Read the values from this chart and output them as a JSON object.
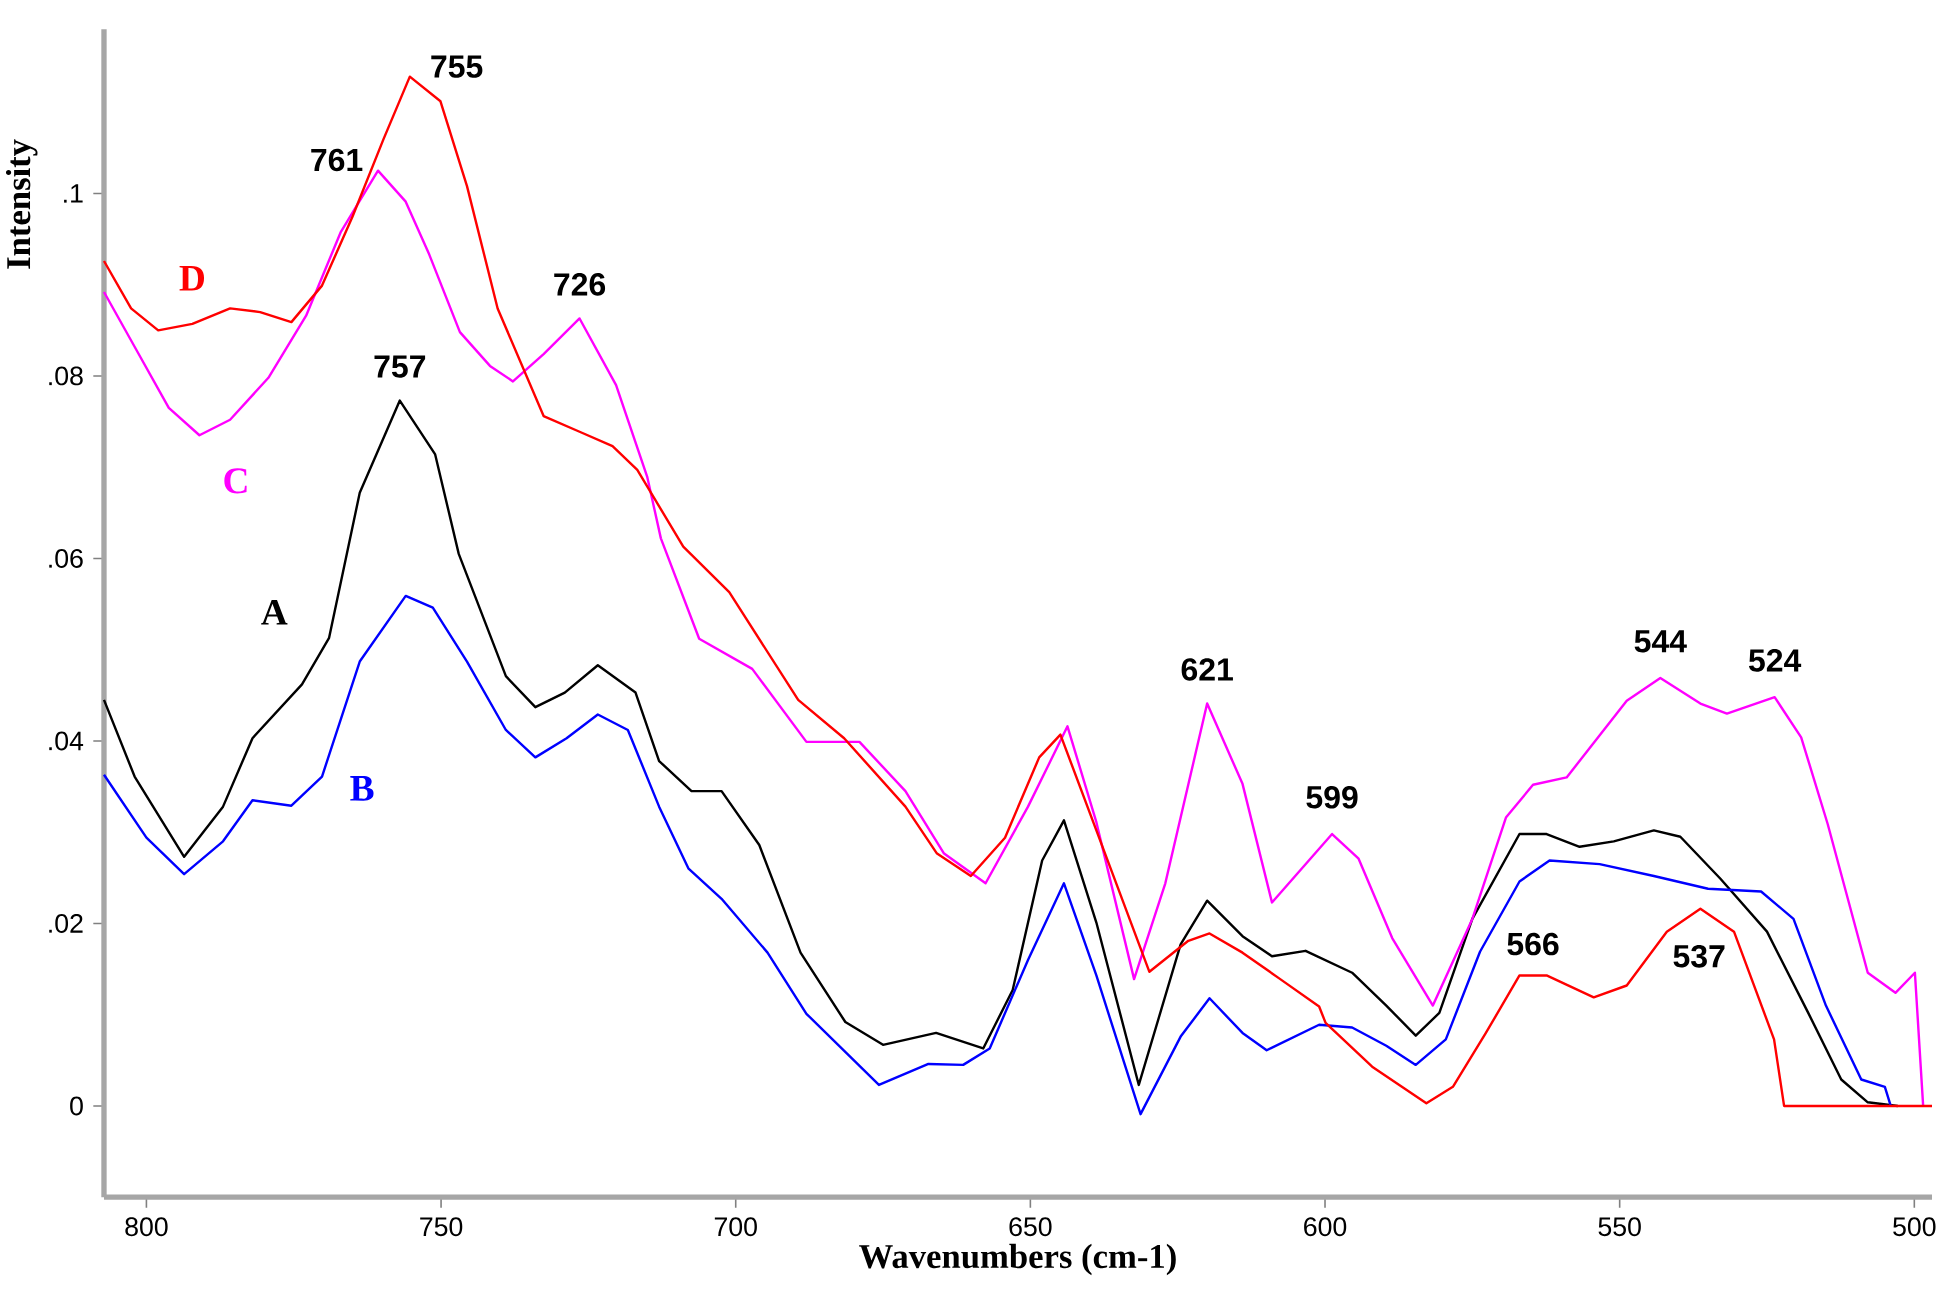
{
  "chart_data": {
    "type": "line",
    "xlabel": "Wavenumbers (cm-1)",
    "ylabel": "Intensity",
    "xlim": [
      807.2,
      497
    ],
    "ylim": [
      -0.01,
      0.118
    ],
    "xticks": [
      800,
      750,
      700,
      650,
      600,
      550,
      500
    ],
    "yticks": [
      {
        "value": 0,
        "label": "0"
      },
      {
        "value": 0.02,
        "label": ".02"
      },
      {
        "value": 0.04,
        "label": ".04"
      },
      {
        "value": 0.06,
        "label": ".06"
      },
      {
        "value": 0.08,
        "label": ".08"
      },
      {
        "value": 0.1,
        "label": ".1"
      }
    ],
    "series": [
      {
        "name": "A",
        "color": "#000000",
        "x": [
          807.2,
          802,
          793.6,
          787,
          782,
          773.6,
          769,
          763.8,
          757,
          751,
          747,
          739,
          734,
          729,
          723.4,
          717,
          713,
          707.5,
          702.4,
          696,
          689,
          681.4,
          675,
          666,
          658,
          653,
          648,
          644.3,
          638.8,
          631.6,
          624.5,
          620,
          614,
          609,
          603.3,
          595.4,
          589.6,
          584.6,
          580.6,
          575,
          567,
          562.4,
          556.8,
          551,
          544.2,
          539.7,
          532.9,
          525,
          518,
          512.4,
          507.9,
          502.8
        ],
        "values": [
          0.0445,
          0.0361,
          0.0273,
          0.0328,
          0.0403,
          0.0462,
          0.0513,
          0.0672,
          0.0773,
          0.0714,
          0.0605,
          0.0471,
          0.0437,
          0.0453,
          0.0483,
          0.0453,
          0.0378,
          0.0345,
          0.0345,
          0.0286,
          0.0168,
          0.0092,
          0.0067,
          0.008,
          0.0063,
          0.0127,
          0.0269,
          0.0313,
          0.0201,
          0.0023,
          0.0177,
          0.0225,
          0.0186,
          0.0164,
          0.017,
          0.0146,
          0.011,
          0.0077,
          0.0102,
          0.0205,
          0.0298,
          0.0298,
          0.0284,
          0.029,
          0.0302,
          0.0295,
          0.0249,
          0.0191,
          0.0102,
          0.0029,
          0.0004,
          0
        ]
      },
      {
        "name": "B",
        "color": "#0000ff",
        "x": [
          807.2,
          800,
          793.6,
          787,
          782,
          775.4,
          770.2,
          763.8,
          756,
          751.4,
          745.6,
          739,
          734,
          728.7,
          723.4,
          718.3,
          713,
          708,
          702.4,
          694.6,
          688,
          675.7,
          667.3,
          661.4,
          656.9,
          650.4,
          644.3,
          638.8,
          631.3,
          624.5,
          619.6,
          614,
          609.9,
          601,
          595.4,
          589.6,
          584.6,
          579.5,
          573.7,
          567,
          561.9,
          553.4,
          544.2,
          535,
          526,
          520.5,
          515,
          509,
          505,
          504
        ],
        "values": [
          0.0363,
          0.0294,
          0.0254,
          0.029,
          0.0335,
          0.0329,
          0.0361,
          0.0487,
          0.0559,
          0.0546,
          0.0487,
          0.0412,
          0.0382,
          0.0403,
          0.0429,
          0.0412,
          0.0328,
          0.026,
          0.0227,
          0.0168,
          0.0101,
          0.0023,
          0.0046,
          0.0045,
          0.0063,
          0.016,
          0.0244,
          0.0143,
          -0.0009,
          0.0076,
          0.0118,
          0.008,
          0.0061,
          0.0089,
          0.0086,
          0.0066,
          0.0045,
          0.0073,
          0.0169,
          0.0246,
          0.0269,
          0.0265,
          0.0252,
          0.0238,
          0.0235,
          0.0205,
          0.011,
          0.0029,
          0.0021,
          0
        ]
      },
      {
        "name": "C",
        "color": "#ff00ff",
        "x": [
          807.2,
          802,
          796.2,
          791,
          785.8,
          779.3,
          772.9,
          767,
          760.7,
          756,
          752,
          746.8,
          741.7,
          737.8,
          732.6,
          726.5,
          720.3,
          715,
          712.7,
          706.2,
          697.2,
          688,
          679,
          671.2,
          664.7,
          657.6,
          650.4,
          643.7,
          638.8,
          632.4,
          627.1,
          620,
          614,
          609,
          598.8,
          594.3,
          588.6,
          581.7,
          575,
          569.3,
          564.7,
          559,
          548.8,
          543.1,
          536.3,
          531.8,
          523.7,
          519.2,
          514.7,
          507.9,
          503.2,
          499.9,
          498.5
        ],
        "values": [
          0.0892,
          0.0832,
          0.0765,
          0.0735,
          0.0752,
          0.0798,
          0.0866,
          0.0958,
          0.1025,
          0.0991,
          0.0933,
          0.0848,
          0.0811,
          0.0794,
          0.0824,
          0.0863,
          0.079,
          0.0689,
          0.0622,
          0.0512,
          0.0479,
          0.0399,
          0.0399,
          0.0345,
          0.0277,
          0.0244,
          0.0328,
          0.0416,
          0.0311,
          0.0139,
          0.0244,
          0.0441,
          0.0353,
          0.0223,
          0.0298,
          0.0271,
          0.0184,
          0.011,
          0.0205,
          0.0316,
          0.0352,
          0.036,
          0.0444,
          0.0469,
          0.0441,
          0.043,
          0.0448,
          0.0404,
          0.0309,
          0.0146,
          0.0124,
          0.0146,
          0
        ]
      },
      {
        "name": "D",
        "color": "#ff0000",
        "x": [
          807.2,
          802.6,
          798,
          792.2,
          785.8,
          780.7,
          775.4,
          770.2,
          765,
          759.8,
          755.3,
          750.1,
          745.6,
          740.4,
          732.6,
          726.2,
          720.9,
          716.7,
          708.9,
          701.1,
          689.4,
          681.6,
          671.2,
          665.9,
          660.1,
          654.3,
          648.5,
          644.9,
          638.8,
          629.8,
          623.2,
          619.6,
          614,
          607.6,
          601,
          599.9,
          592,
          582.8,
          578.3,
          572.7,
          567,
          562.4,
          554.4,
          548.8,
          542,
          536.3,
          530.6,
          523.8,
          522.1,
          497
        ],
        "values": [
          0.0926,
          0.0874,
          0.085,
          0.0857,
          0.0874,
          0.087,
          0.0859,
          0.0899,
          0.0975,
          0.1059,
          0.1128,
          0.1101,
          0.1008,
          0.0874,
          0.0756,
          0.0738,
          0.0723,
          0.0697,
          0.0613,
          0.0563,
          0.0445,
          0.0403,
          0.0328,
          0.0277,
          0.0252,
          0.0294,
          0.0382,
          0.0407,
          0.0302,
          0.0147,
          0.0181,
          0.0189,
          0.0168,
          0.0139,
          0.0109,
          0.0091,
          0.0043,
          0.0003,
          0.0021,
          0.008,
          0.0143,
          0.0143,
          0.0119,
          0.0132,
          0.0191,
          0.0216,
          0.0191,
          0.0073,
          0,
          0
        ]
      }
    ],
    "annotations": [
      {
        "text": "755",
        "x": 755.3,
        "y": 0.1128
      },
      {
        "text": "761",
        "x": 760.7,
        "y": 0.1025
      },
      {
        "text": "757",
        "x": 757,
        "y": 0.0773
      },
      {
        "text": "726",
        "x": 726.5,
        "y": 0.0863
      },
      {
        "text": "621",
        "x": 620,
        "y": 0.0441
      },
      {
        "text": "599",
        "x": 598.8,
        "y": 0.0298
      },
      {
        "text": "544",
        "x": 543.1,
        "y": 0.0469
      },
      {
        "text": "524",
        "x": 523.7,
        "y": 0.0448
      },
      {
        "text": "566",
        "x": 564.7,
        "y": 0.0143
      },
      {
        "text": "537",
        "x": 536.3,
        "y": 0.0216
      }
    ]
  }
}
